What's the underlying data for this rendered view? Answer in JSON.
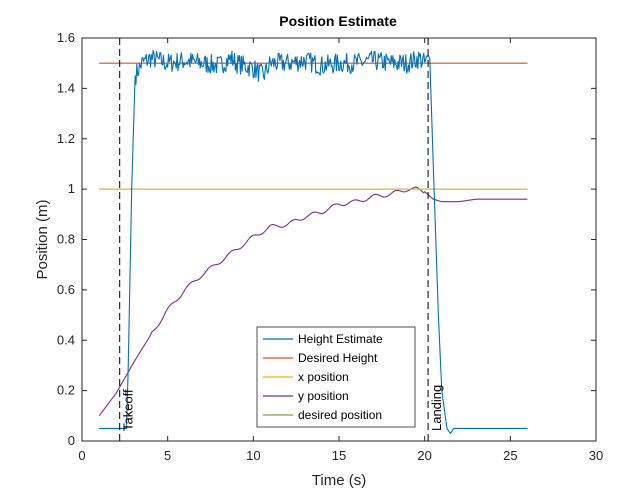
{
  "chart_data": {
    "type": "line",
    "title": "Position Estimate",
    "xlabel": "Time (s)",
    "ylabel": "Position (m)",
    "xlim": [
      0,
      30
    ],
    "ylim": [
      0,
      1.6
    ],
    "xticks": [
      0,
      5,
      10,
      15,
      20,
      25,
      30
    ],
    "yticks": [
      0,
      0.2,
      0.4,
      0.6,
      0.8,
      1,
      1.2,
      1.4,
      1.6
    ],
    "ytick_labels": [
      "0",
      "0.2",
      "0.4",
      "0.6",
      "0.8",
      "1",
      "1.2",
      "1.4",
      "1.6"
    ],
    "grid": false,
    "legend_position": "bottom-center",
    "series": [
      {
        "name": "Height Estimate",
        "color": "#0072BD",
        "noise_from": 3.1,
        "noise_to": 20.3,
        "noise_amplitude": 0.04,
        "x": [
          1,
          2.6,
          2.7,
          2.9,
          3.1,
          3.5,
          4.0,
          5.0,
          6.0,
          7.0,
          8.0,
          8.7,
          9.0,
          10.0,
          10.6,
          11.0,
          12.0,
          13.0,
          14.0,
          15.0,
          16.0,
          17.0,
          18.0,
          19.0,
          19.7,
          20.0,
          20.3,
          20.5,
          20.8,
          21.0,
          21.3,
          21.5,
          21.7,
          22.0,
          26
        ],
        "y": [
          0.05,
          0.05,
          0.3,
          1.0,
          1.45,
          1.5,
          1.52,
          1.5,
          1.51,
          1.5,
          1.49,
          1.52,
          1.5,
          1.48,
          1.45,
          1.5,
          1.5,
          1.51,
          1.49,
          1.5,
          1.5,
          1.51,
          1.5,
          1.5,
          1.52,
          1.5,
          1.52,
          1.1,
          0.5,
          0.2,
          0.05,
          0.03,
          0.05,
          0.05,
          0.05
        ]
      },
      {
        "name": "Desired Height",
        "color": "#D95319",
        "x": [
          1,
          26
        ],
        "y": [
          1.5,
          1.5
        ]
      },
      {
        "name": "x position",
        "color": "#EDB120",
        "x": [
          1,
          26
        ],
        "y": [
          1.0,
          1.0
        ]
      },
      {
        "name": "y position",
        "color": "#7E2F8E",
        "ripple_amplitude": 0.008,
        "ripple_period": 1.2,
        "x": [
          1,
          2,
          3,
          4,
          5,
          6,
          7,
          8,
          9,
          10,
          11,
          12,
          13,
          14,
          15,
          16,
          17,
          18,
          19,
          19.5,
          20,
          20.5,
          21,
          22,
          23,
          24,
          25,
          26
        ],
        "y": [
          0.1,
          0.19,
          0.31,
          0.42,
          0.52,
          0.6,
          0.66,
          0.71,
          0.76,
          0.81,
          0.85,
          0.86,
          0.89,
          0.91,
          0.94,
          0.95,
          0.97,
          0.98,
          1.0,
          1.0,
          0.99,
          0.96,
          0.95,
          0.95,
          0.96,
          0.96,
          0.96,
          0.96
        ]
      },
      {
        "name": "desired position",
        "color": "#77AC30",
        "x": [
          1,
          26
        ],
        "y": [
          1.0,
          1.0
        ]
      }
    ],
    "annotations": [
      {
        "type": "vline",
        "x": 2.2,
        "style": "dashed",
        "label": "Takeoff"
      },
      {
        "type": "vline",
        "x": 20.2,
        "style": "dashed",
        "label": "Landing"
      }
    ]
  }
}
